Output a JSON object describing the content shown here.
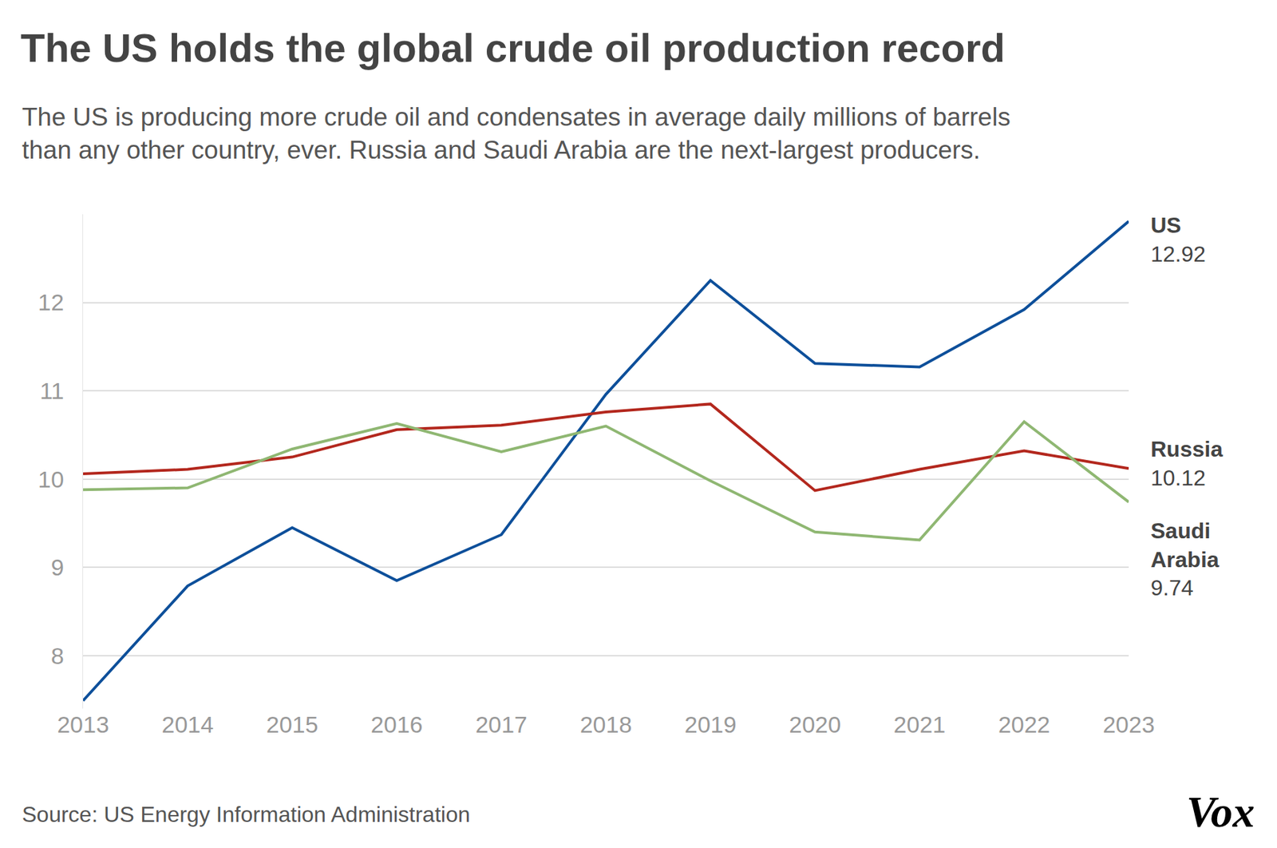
{
  "chart_data": {
    "type": "line",
    "title": "The US holds the global crude oil production record",
    "subtitle": [
      "The US is producing more crude oil and condensates in average daily millions of barrels",
      "than any other country, ever. Russia and Saudi Arabia are the next-largest producers."
    ],
    "source": "Source: US Energy Information Administration",
    "logo": "Vox",
    "x": [
      2013,
      2014,
      2015,
      2016,
      2017,
      2018,
      2019,
      2020,
      2021,
      2022,
      2023
    ],
    "xlim": [
      2013,
      2023
    ],
    "xticks": [
      2013,
      2014,
      2015,
      2016,
      2017,
      2018,
      2019,
      2020,
      2021,
      2022,
      2023
    ],
    "ylim": [
      7.4,
      13
    ],
    "yticks": [
      8,
      9,
      10,
      11,
      12
    ],
    "grid": true,
    "series": [
      {
        "name": "US",
        "color": "#0d4f9a",
        "values": [
          7.49,
          8.79,
          9.45,
          8.85,
          9.37,
          10.96,
          12.25,
          11.31,
          11.27,
          11.92,
          12.92
        ]
      },
      {
        "name": "Russia",
        "color": "#b3271d",
        "values": [
          10.06,
          10.11,
          10.25,
          10.56,
          10.61,
          10.76,
          10.85,
          9.87,
          10.11,
          10.32,
          10.12
        ]
      },
      {
        "name": "Saudi Arabia",
        "color": "#8fb772",
        "values": [
          9.88,
          9.9,
          10.34,
          10.63,
          10.31,
          10.6,
          9.98,
          9.4,
          9.31,
          10.65,
          9.74
        ]
      }
    ]
  }
}
